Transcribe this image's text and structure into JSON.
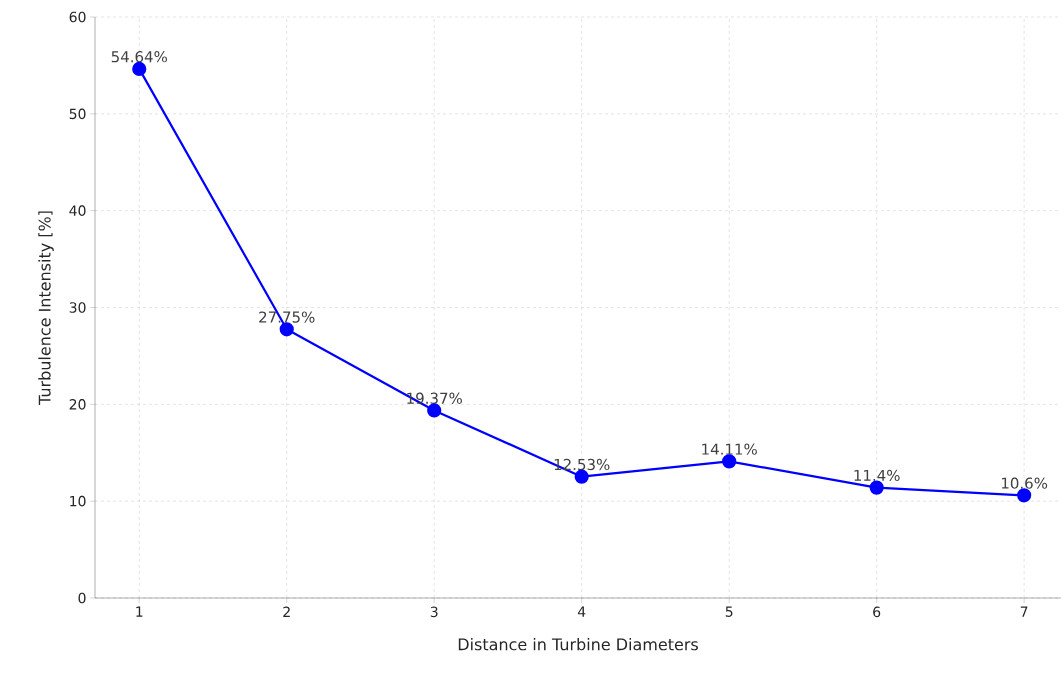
{
  "chart_data": {
    "type": "line",
    "xlabel": "Distance in Turbine Diameters",
    "ylabel": "Turbulence Intensity [%]",
    "x": [
      1,
      2,
      3,
      4,
      5,
      6,
      7
    ],
    "series": [
      {
        "color": "#0000ff",
        "values": [
          54.64,
          27.75,
          19.37,
          12.53,
          14.11,
          11.4,
          10.6
        ],
        "value_labels": [
          "54.64%",
          "27.75%",
          "19.37%",
          "12.53%",
          "14.11%",
          "11.4%",
          "10.6%"
        ]
      }
    ],
    "xlim": [
      0.7,
      7.25
    ],
    "ylim": [
      0,
      60
    ],
    "xticks": [
      1,
      2,
      3,
      4,
      5,
      6,
      7
    ],
    "yticks": [
      0,
      10,
      20,
      30,
      40,
      50,
      60
    ],
    "grid": true,
    "marker": "circle",
    "line_style": "solid"
  }
}
